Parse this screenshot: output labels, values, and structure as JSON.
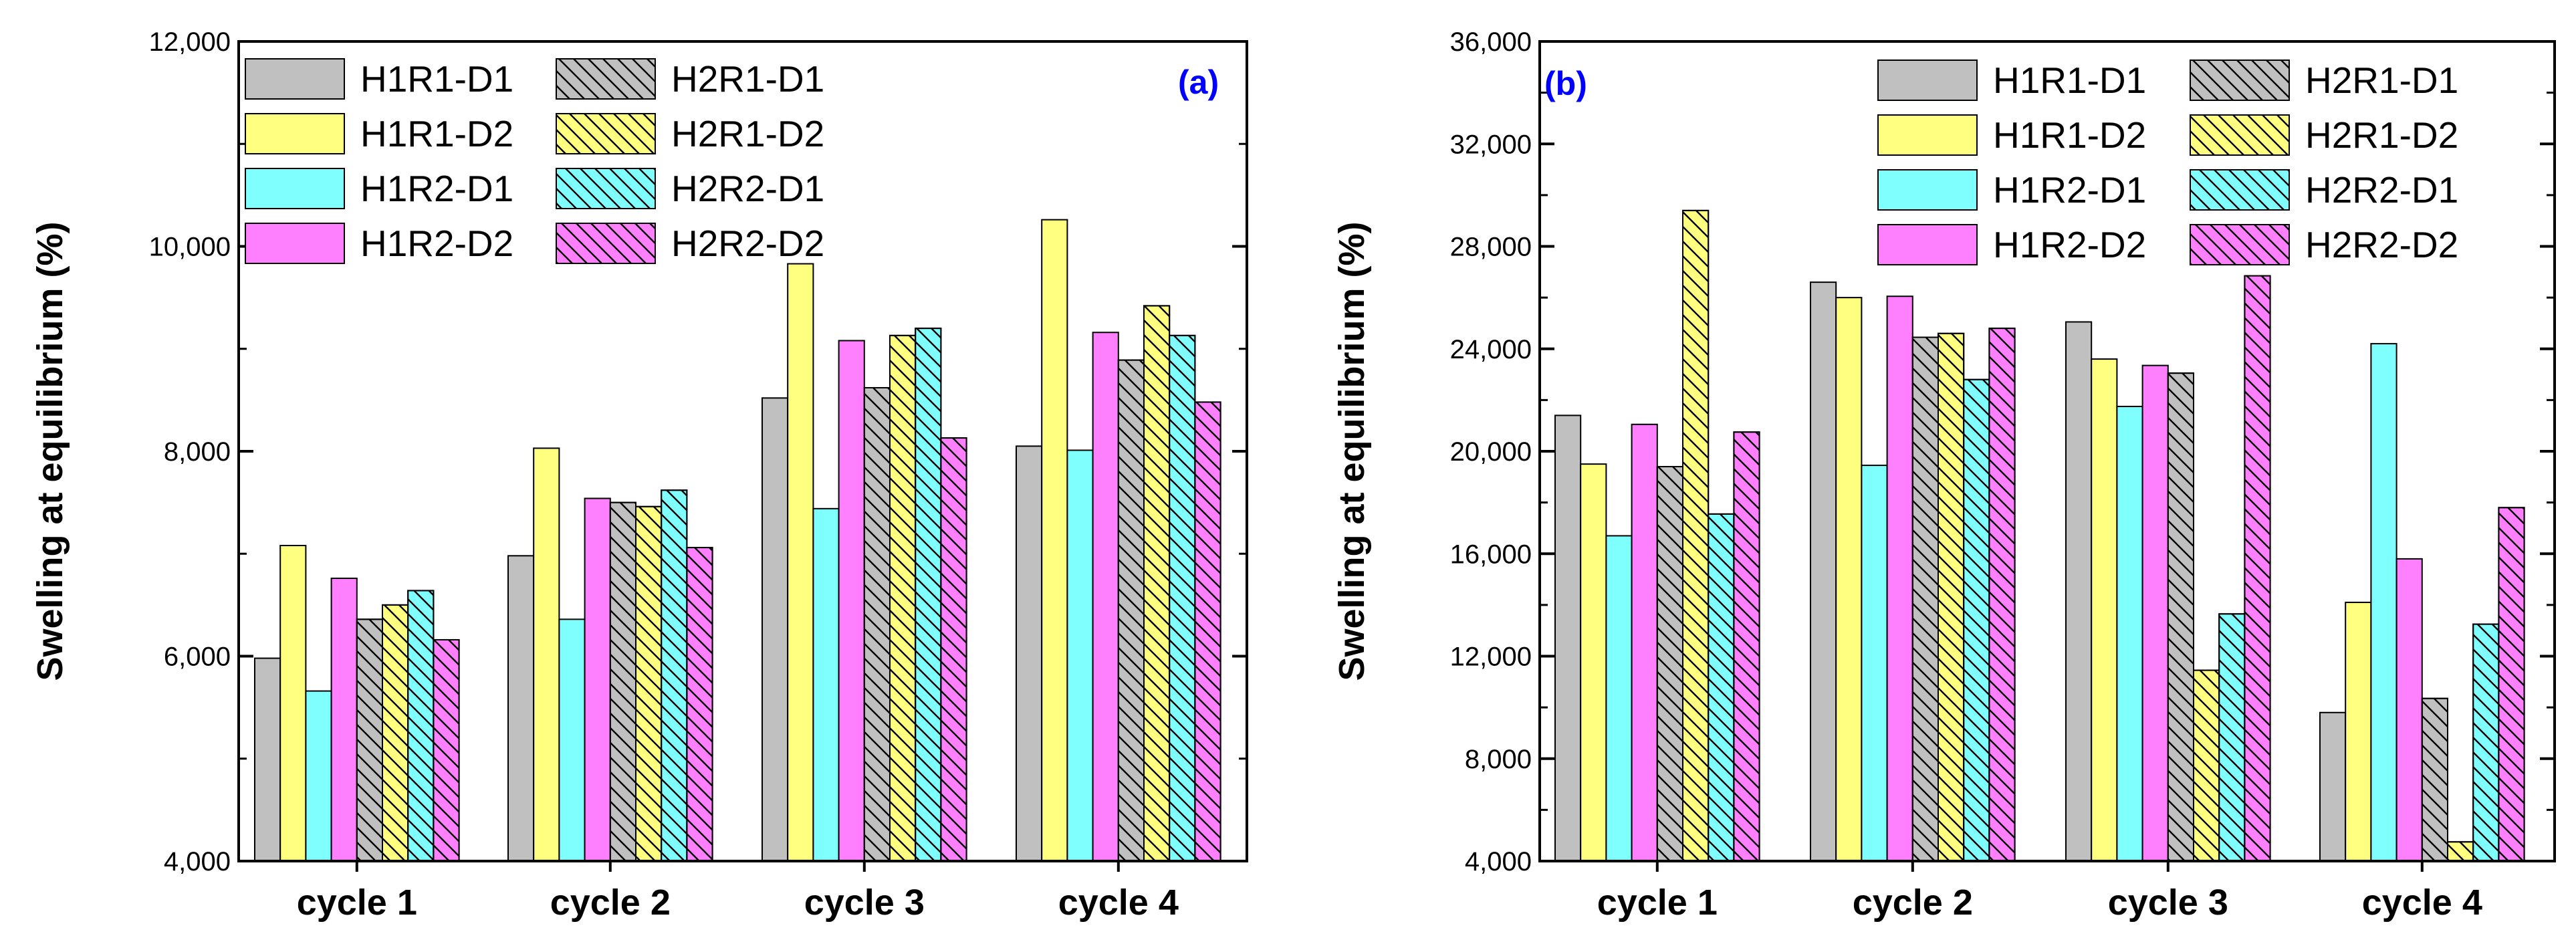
{
  "colors": {
    "D1_R1": "#c0c0c0",
    "D2_R1": "#ffff80",
    "D1_R2": "#80ffff",
    "D2_R2": "#ff80ff",
    "panel_label": "#0000ff"
  },
  "chart_data": [
    {
      "type": "bar",
      "panel_label": "(a)",
      "ylabel": "Swelling at equilibrium (%)",
      "xlabel": "",
      "ylim": [
        4000,
        12000
      ],
      "yticks": [
        4000,
        6000,
        8000,
        10000,
        12000
      ],
      "ytick_labels": [
        "4,000",
        "6,000",
        "8,000",
        "10,000",
        "12,000"
      ],
      "legend_position": "top-left",
      "categories": [
        "cycle 1",
        "cycle 2",
        "cycle 3",
        "cycle 4"
      ],
      "series": [
        {
          "name": "H1R1-D1",
          "color": "#c0c0c0",
          "hatch": false,
          "values": [
            5980,
            6980,
            8520,
            8050
          ]
        },
        {
          "name": "H1R1-D2",
          "color": "#ffff80",
          "hatch": false,
          "values": [
            7080,
            8030,
            9830,
            10260
          ]
        },
        {
          "name": "H1R2-D1",
          "color": "#80ffff",
          "hatch": false,
          "values": [
            5660,
            6360,
            7440,
            8010
          ]
        },
        {
          "name": "H1R2-D2",
          "color": "#ff80ff",
          "hatch": false,
          "values": [
            6760,
            7540,
            9080,
            9160
          ]
        },
        {
          "name": "H2R1-D1",
          "color": "#c0c0c0",
          "hatch": true,
          "values": [
            6360,
            7500,
            8620,
            8890
          ]
        },
        {
          "name": "H2R1-D2",
          "color": "#ffff80",
          "hatch": true,
          "values": [
            6500,
            7460,
            9130,
            9420
          ]
        },
        {
          "name": "H2R2-D1",
          "color": "#80ffff",
          "hatch": true,
          "values": [
            6640,
            7620,
            9200,
            9130
          ]
        },
        {
          "name": "H2R2-D2",
          "color": "#ff80ff",
          "hatch": true,
          "values": [
            6160,
            7060,
            8130,
            8480
          ]
        }
      ]
    },
    {
      "type": "bar",
      "panel_label": "(b)",
      "ylabel": "Swelling at equilibrium (%)",
      "xlabel": "",
      "ylim": [
        4000,
        36000
      ],
      "yticks": [
        4000,
        8000,
        12000,
        16000,
        20000,
        24000,
        28000,
        32000,
        36000
      ],
      "ytick_labels": [
        "4,000",
        "8,000",
        "12,000",
        "16,000",
        "20,000",
        "24,000",
        "28,000",
        "32,000",
        "36,000"
      ],
      "legend_position": "top-right",
      "categories": [
        "cycle 1",
        "cycle 2",
        "cycle 3",
        "cycle 4"
      ],
      "series": [
        {
          "name": "H1R1-D1",
          "color": "#c0c0c0",
          "hatch": false,
          "values": [
            21400,
            26600,
            25050,
            9800
          ]
        },
        {
          "name": "H1R1-D2",
          "color": "#ffff80",
          "hatch": false,
          "values": [
            19500,
            26000,
            23600,
            14100
          ]
        },
        {
          "name": "H1R2-D1",
          "color": "#80ffff",
          "hatch": false,
          "values": [
            16700,
            19450,
            21750,
            24200
          ]
        },
        {
          "name": "H1R2-D2",
          "color": "#ff80ff",
          "hatch": false,
          "values": [
            21050,
            26050,
            23350,
            15800
          ]
        },
        {
          "name": "H2R1-D1",
          "color": "#c0c0c0",
          "hatch": true,
          "values": [
            19400,
            24450,
            23050,
            10350
          ]
        },
        {
          "name": "H2R1-D2",
          "color": "#ffff80",
          "hatch": true,
          "values": [
            29400,
            24600,
            11450,
            4750
          ]
        },
        {
          "name": "H2R2-D1",
          "color": "#80ffff",
          "hatch": true,
          "values": [
            17550,
            22800,
            13650,
            13250
          ]
        },
        {
          "name": "H2R2-D2",
          "color": "#ff80ff",
          "hatch": true,
          "values": [
            20750,
            24800,
            26850,
            17800
          ]
        }
      ]
    }
  ]
}
